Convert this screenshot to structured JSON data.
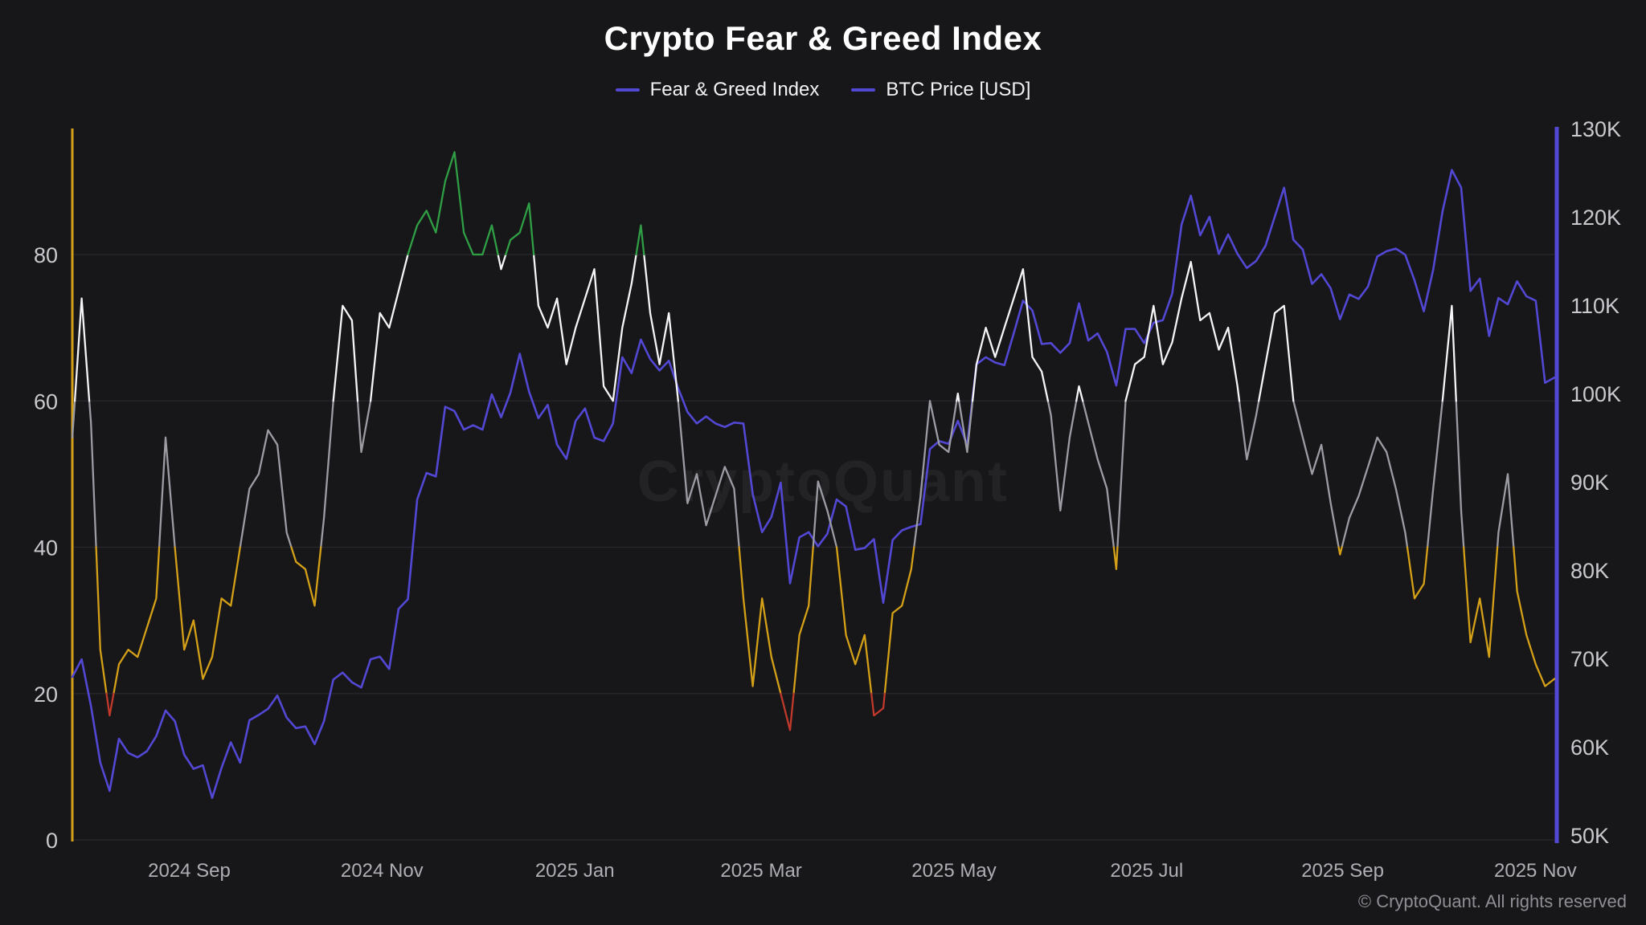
{
  "header": {
    "title": "Crypto Fear & Greed Index"
  },
  "legend": [
    {
      "label": "Fear & Greed Index",
      "color": "#5348d4"
    },
    {
      "label": "BTC Price [USD]",
      "color": "#5348d4"
    }
  ],
  "watermark": "CryptoQuant",
  "footer": {
    "copyright": "© CryptoQuant. All rights reserved"
  },
  "colors": {
    "background": "#17171a",
    "grid": "#26262b",
    "tick_label": "#c9c9ce",
    "x_label": "#aeaeb4",
    "left_axis_line": "#d4a017",
    "right_axis_line": "#5348d4",
    "title": "#ffffff"
  },
  "chart_data": {
    "type": "line",
    "title": "Crypto Fear & Greed Index",
    "legend_position": "top",
    "grid": "horizontal-only",
    "x_start": "2024-07-26",
    "x_end": "2025-11-07",
    "x_span_days": 469,
    "x_ticks": [
      {
        "label": "2024 Sep",
        "day": 37
      },
      {
        "label": "2024 Nov",
        "day": 98
      },
      {
        "label": "2025 Jan",
        "day": 159
      },
      {
        "label": "2025 Mar",
        "day": 218
      },
      {
        "label": "2025 May",
        "day": 279
      },
      {
        "label": "2025 Jul",
        "day": 340
      },
      {
        "label": "2025 Sep",
        "day": 402
      },
      {
        "label": "2025 Nov",
        "day": 463
      }
    ],
    "left_axis": {
      "label": "Fear & Greed Index",
      "range": [
        0,
        100
      ],
      "ticks": [
        0,
        20,
        40,
        60,
        80
      ]
    },
    "right_axis": {
      "label": "BTC Price [USD]",
      "range_thousands": [
        50,
        130
      ],
      "ticks": [
        {
          "value": 50,
          "label": "50K"
        },
        {
          "value": 60,
          "label": "60K"
        },
        {
          "value": 70,
          "label": "70K"
        },
        {
          "value": 80,
          "label": "80K"
        },
        {
          "value": 90,
          "label": "90K"
        },
        {
          "value": 100,
          "label": "100K"
        },
        {
          "value": 110,
          "label": "110K"
        },
        {
          "value": 120,
          "label": "120K"
        },
        {
          "value": 130,
          "label": "130K"
        }
      ]
    },
    "fg_color_bands": [
      {
        "max": 20,
        "color": "#c0392b",
        "meaning": "extreme fear"
      },
      {
        "max": 40,
        "color": "#d4a017",
        "meaning": "fear"
      },
      {
        "max": 60,
        "color": "#9c9ca4",
        "meaning": "neutral"
      },
      {
        "max": 80,
        "color": "#f5f5f7",
        "meaning": "greed"
      },
      {
        "max": 101,
        "color": "#2f9e44",
        "meaning": "extreme greed"
      }
    ],
    "btc_color": "#5348d4",
    "series": [
      {
        "name": "Fear & Greed Index",
        "axis": "left",
        "values": [
          55,
          74,
          57,
          26,
          17,
          24,
          26,
          25,
          29,
          33,
          55,
          40,
          26,
          30,
          22,
          25,
          33,
          32,
          40,
          48,
          50,
          56,
          54,
          42,
          38,
          37,
          32,
          44,
          60,
          73,
          71,
          53,
          60,
          72,
          70,
          75,
          80,
          84,
          86,
          83,
          90,
          94,
          83,
          80,
          80,
          84,
          78,
          82,
          83,
          87,
          73,
          70,
          74,
          65,
          70,
          74,
          78,
          62,
          60,
          70,
          76,
          84,
          72,
          65,
          72,
          60,
          46,
          50,
          43,
          47,
          51,
          48,
          33,
          21,
          33,
          25,
          20,
          15,
          28,
          32,
          49,
          45,
          40,
          28,
          24,
          28,
          17,
          18,
          31,
          32,
          37,
          47,
          60,
          54,
          53,
          61,
          53,
          65,
          70,
          66,
          70,
          74,
          78,
          66,
          64,
          58,
          45,
          55,
          62,
          57,
          52,
          48,
          37,
          60,
          65,
          66,
          73,
          65,
          68,
          74,
          79,
          71,
          72,
          67,
          70,
          62,
          52,
          58,
          65,
          72,
          73,
          60,
          55,
          50,
          54,
          46,
          39,
          44,
          47,
          51,
          55,
          53,
          48,
          42,
          33,
          35,
          48,
          60,
          73,
          45,
          27,
          33,
          25,
          42,
          50,
          34,
          28,
          24,
          21,
          22
        ]
      },
      {
        "name": "BTC Price [USD]",
        "axis": "right",
        "unit": "thousand USD",
        "values": [
          67.9,
          69.9,
          64.6,
          58.2,
          55.0,
          60.9,
          59.3,
          58.8,
          59.5,
          61.2,
          64.1,
          62.9,
          59.1,
          57.5,
          57.9,
          54.2,
          57.6,
          60.5,
          58.2,
          63.0,
          63.6,
          64.3,
          65.8,
          63.3,
          62.1,
          62.3,
          60.3,
          62.9,
          67.6,
          68.4,
          67.3,
          66.7,
          69.9,
          70.2,
          68.8,
          75.6,
          76.7,
          88.0,
          91.0,
          90.6,
          98.5,
          98.0,
          95.9,
          96.4,
          95.9,
          99.9,
          97.3,
          100.1,
          104.5,
          100.2,
          97.2,
          98.7,
          94.2,
          92.6,
          96.9,
          98.3,
          95.0,
          94.6,
          96.6,
          104.1,
          102.3,
          106.1,
          103.9,
          102.6,
          103.7,
          100.6,
          97.9,
          96.6,
          97.4,
          96.6,
          96.2,
          96.7,
          96.6,
          88.6,
          84.3,
          86.0,
          89.9,
          78.5,
          83.7,
          84.3,
          82.7,
          84.1,
          88.0,
          87.2,
          82.3,
          82.5,
          83.5,
          76.3,
          83.4,
          84.5,
          84.9,
          85.2,
          93.7,
          94.6,
          94.3,
          96.9,
          94.2,
          103.3,
          104.1,
          103.5,
          103.2,
          106.8,
          110.5,
          109.4,
          105.6,
          105.7,
          104.6,
          105.7,
          110.2,
          106.0,
          106.8,
          104.7,
          100.9,
          107.3,
          107.3,
          105.7,
          108.0,
          108.3,
          111.3,
          119.1,
          122.4,
          117.9,
          120.0,
          115.8,
          118.0,
          115.8,
          114.2,
          115.0,
          116.7,
          120.0,
          123.3,
          117.4,
          116.3,
          112.4,
          113.5,
          111.9,
          108.4,
          111.2,
          110.7,
          112.1,
          115.5,
          116.1,
          116.4,
          115.7,
          112.8,
          109.3,
          114.0,
          120.6,
          125.3,
          123.3,
          111.6,
          113.0,
          106.5,
          110.8,
          110.1,
          112.7,
          111.0,
          110.5,
          101.2,
          101.8
        ]
      }
    ]
  }
}
